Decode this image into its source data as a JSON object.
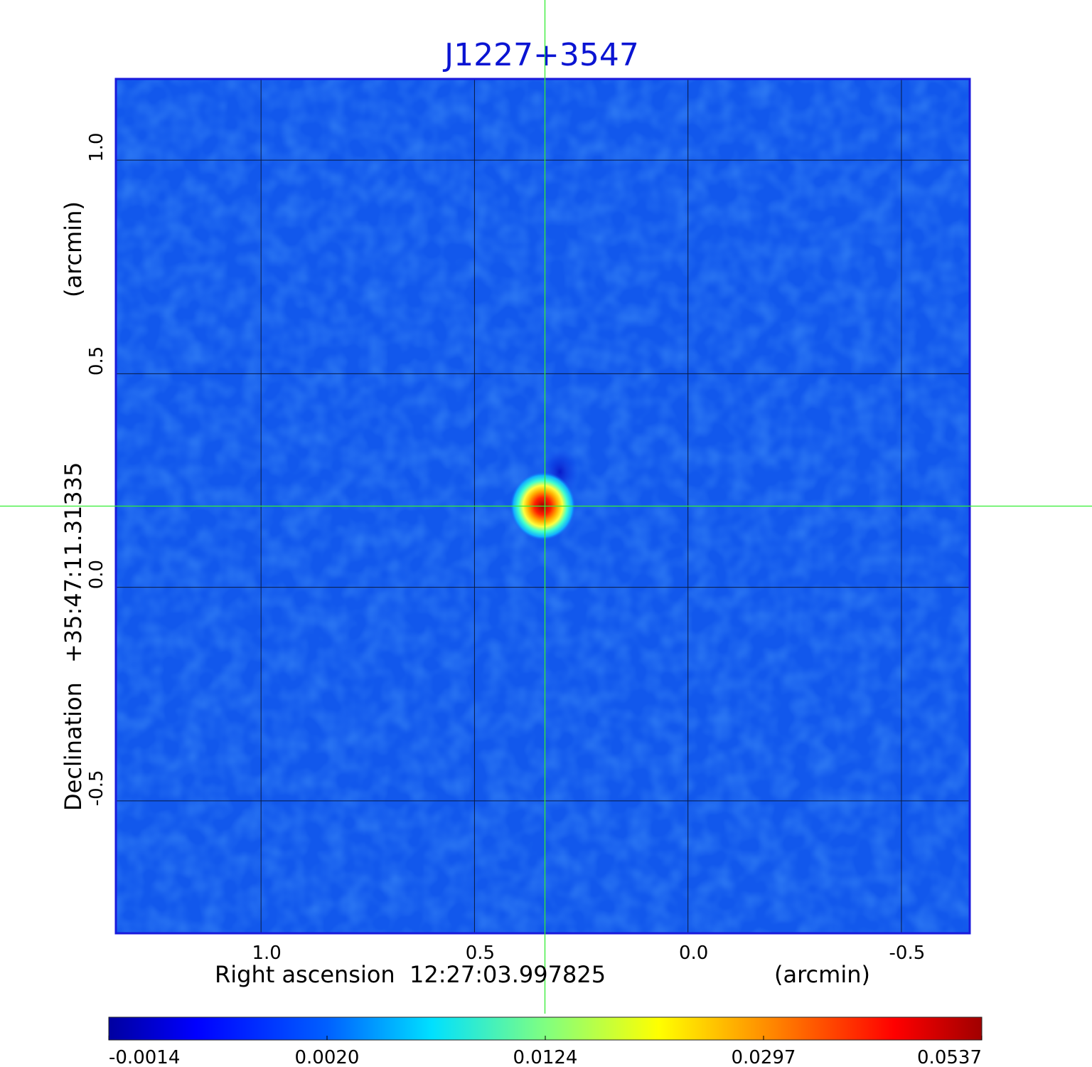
{
  "chart_data": {
    "type": "heatmap",
    "title": "J1227+3547",
    "colormap": "jet",
    "x_axis": {
      "label_name": "Right ascension",
      "label_center": "12:27:03.997825",
      "label_unit": "(arcmin)",
      "ticks": [
        "1.0",
        "0.5",
        "0.0",
        "-0.5"
      ],
      "tick_values": [
        1.0,
        0.5,
        0.0,
        -0.5
      ],
      "range": [
        1.34,
        -0.66
      ],
      "inverted": true
    },
    "y_axis": {
      "label_name": "Declination",
      "label_center": "+35:47:11.31335",
      "label_unit": "(arcmin)",
      "ticks": [
        "1.0",
        "0.5",
        "0.0",
        "-0.5"
      ],
      "tick_values": [
        1.0,
        0.5,
        0.0,
        -0.5
      ],
      "range": [
        -0.81,
        1.19
      ]
    },
    "grid": true,
    "crosshair": {
      "x": 0.335,
      "y": 0.19,
      "color": "#33ee33"
    },
    "source": {
      "x": 0.34,
      "y": 0.19,
      "peak": 0.0537
    },
    "negative_feature": {
      "x": 0.3,
      "y": 0.27,
      "value": -0.0014
    },
    "colorbar": {
      "placement": "bottom",
      "ticks": [
        "-0.0014",
        "0.0020",
        "0.0124",
        "0.0297",
        "0.0537"
      ],
      "tick_values": [
        -0.0014,
        0.002,
        0.0124,
        0.0297,
        0.0537
      ]
    }
  }
}
